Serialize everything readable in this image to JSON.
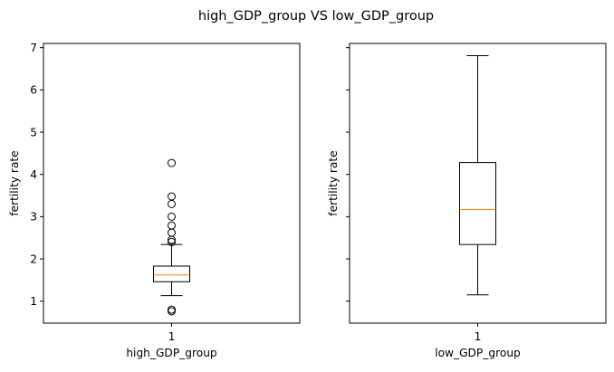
{
  "figure": {
    "suptitle": "high_GDP_group VS low_GDP_group"
  },
  "chart_data": [
    {
      "type": "box",
      "xlabel": "high_GDP_group",
      "ylabel": "fertility rate",
      "categories": [
        "1"
      ],
      "ylim": [
        0.48,
        7.1
      ],
      "yticks": [
        1,
        2,
        3,
        4,
        5,
        6,
        7
      ],
      "show_ytick_labels": true,
      "box": {
        "whisker_low": 1.13,
        "q1": 1.46,
        "median": 1.62,
        "q3": 1.83,
        "whisker_high": 2.34
      },
      "outliers": [
        0.76,
        0.8,
        2.4,
        2.45,
        2.62,
        2.79,
        3.0,
        3.3,
        3.48,
        4.27
      ],
      "colors": {
        "box": "#000000",
        "median": "#ff7f0e"
      },
      "grid": false
    },
    {
      "type": "box",
      "xlabel": "low_GDP_group",
      "ylabel": "fertility rate",
      "categories": [
        "1"
      ],
      "ylim": [
        0.48,
        7.1
      ],
      "yticks": [
        1,
        2,
        3,
        4,
        5,
        6,
        7
      ],
      "show_ytick_labels": false,
      "box": {
        "whisker_low": 1.15,
        "q1": 2.34,
        "median": 3.17,
        "q3": 4.28,
        "whisker_high": 6.81
      },
      "outliers": [],
      "colors": {
        "box": "#000000",
        "median": "#ff7f0e"
      },
      "grid": false
    }
  ]
}
